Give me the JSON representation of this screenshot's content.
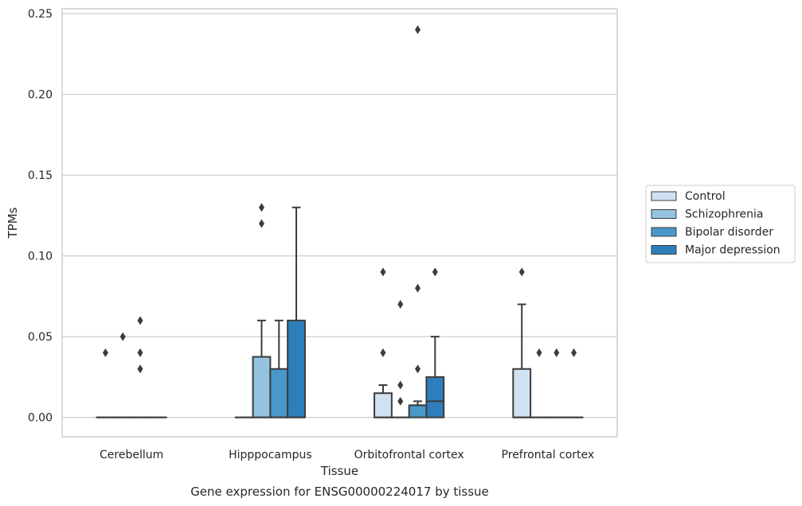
{
  "caption": "Gene expression for ENSG00000224017 by tissue",
  "chart_data": {
    "type": "box",
    "title": "",
    "xlabel": "Tissue",
    "ylabel": "TPMs",
    "ylim": [
      -0.012,
      0.253
    ],
    "yticks": [
      0.0,
      0.05,
      0.1,
      0.15,
      0.2,
      0.25
    ],
    "ytick_labels": [
      "0.00",
      "0.05",
      "0.10",
      "0.15",
      "0.20",
      "0.25"
    ],
    "grid": true,
    "legend_position": "right",
    "categories": [
      "Cerebellum",
      "Hipppocampus",
      "Orbitofrontal cortex",
      "Prefrontal cortex"
    ],
    "series": [
      {
        "name": "Control",
        "color": "#d0e1f2",
        "boxes": [
          {
            "q1": 0,
            "median": 0,
            "q3": 0,
            "whislo": 0,
            "whishi": 0,
            "fliers": [
              0.04
            ]
          },
          {
            "q1": 0,
            "median": 0,
            "q3": 0,
            "whislo": 0,
            "whishi": 0,
            "fliers": []
          },
          {
            "q1": 0,
            "median": 0,
            "q3": 0.015,
            "whislo": 0,
            "whishi": 0.02,
            "fliers": [
              0.04,
              0.09
            ]
          },
          {
            "q1": 0,
            "median": 0,
            "q3": 0.03,
            "whislo": 0,
            "whishi": 0.07,
            "fliers": [
              0.09
            ]
          }
        ]
      },
      {
        "name": "Schizophrenia",
        "color": "#94c4df",
        "boxes": [
          {
            "q1": 0,
            "median": 0,
            "q3": 0,
            "whislo": 0,
            "whishi": 0,
            "fliers": [
              0.05
            ]
          },
          {
            "q1": 0,
            "median": 0,
            "q3": 0.0375,
            "whislo": 0,
            "whishi": 0.06,
            "fliers": [
              0.12,
              0.13
            ]
          },
          {
            "q1": 0,
            "median": 0,
            "q3": 0,
            "whislo": 0,
            "whishi": 0,
            "fliers": [
              0.01,
              0.02,
              0.07
            ]
          },
          {
            "q1": 0,
            "median": 0,
            "q3": 0,
            "whislo": 0,
            "whishi": 0,
            "fliers": [
              0.04
            ]
          }
        ]
      },
      {
        "name": "Bipolar disorder",
        "color": "#4a98c9",
        "boxes": [
          {
            "q1": 0,
            "median": 0,
            "q3": 0,
            "whislo": 0,
            "whishi": 0,
            "fliers": [
              0.03,
              0.04,
              0.06
            ]
          },
          {
            "q1": 0,
            "median": 0,
            "q3": 0.03,
            "whislo": 0,
            "whishi": 0.06,
            "fliers": []
          },
          {
            "q1": 0,
            "median": 0.0075,
            "q3": 0.0075,
            "whislo": 0,
            "whishi": 0.01,
            "fliers": [
              0.03,
              0.08,
              0.24
            ]
          },
          {
            "q1": 0,
            "median": 0,
            "q3": 0,
            "whislo": 0,
            "whishi": 0,
            "fliers": [
              0.04
            ]
          }
        ]
      },
      {
        "name": "Major depression",
        "color": "#2e7ebc",
        "boxes": [
          {
            "q1": 0,
            "median": 0,
            "q3": 0,
            "whislo": 0,
            "whishi": 0,
            "fliers": []
          },
          {
            "q1": 0,
            "median": 0,
            "q3": 0.06,
            "whislo": 0,
            "whishi": 0.13,
            "fliers": []
          },
          {
            "q1": 0,
            "median": 0.01,
            "q3": 0.025,
            "whislo": 0,
            "whishi": 0.05,
            "fliers": [
              0.09
            ]
          },
          {
            "q1": 0,
            "median": 0,
            "q3": 0,
            "whislo": 0,
            "whishi": 0,
            "fliers": [
              0.04
            ]
          }
        ]
      }
    ]
  }
}
